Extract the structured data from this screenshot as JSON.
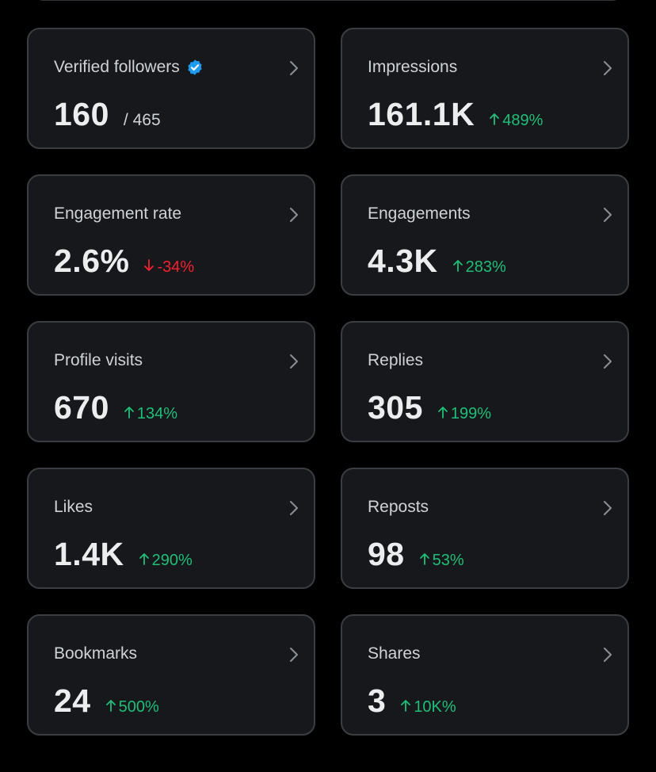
{
  "colors": {
    "background": "#000000",
    "card": "#16181c",
    "border": "#3a3d42",
    "up": "#1fbf78",
    "down": "#f4212e",
    "verified": "#1d9bf0"
  },
  "cards": [
    {
      "label": "Verified followers",
      "value": "160",
      "sub": "/ 465",
      "verified": true
    },
    {
      "label": "Impressions",
      "value": "161.1K",
      "direction": "up",
      "change": "489%"
    },
    {
      "label": "Engagement rate",
      "value": "2.6%",
      "direction": "down",
      "change": "-34%"
    },
    {
      "label": "Engagements",
      "value": "4.3K",
      "direction": "up",
      "change": "283%"
    },
    {
      "label": "Profile visits",
      "value": "670",
      "direction": "up",
      "change": "134%"
    },
    {
      "label": "Replies",
      "value": "305",
      "direction": "up",
      "change": "199%"
    },
    {
      "label": "Likes",
      "value": "1.4K",
      "direction": "up",
      "change": "290%"
    },
    {
      "label": "Reposts",
      "value": "98",
      "direction": "up",
      "change": "53%"
    },
    {
      "label": "Bookmarks",
      "value": "24",
      "direction": "up",
      "change": "500%"
    },
    {
      "label": "Shares",
      "value": "3",
      "direction": "up",
      "change": "10K%"
    }
  ]
}
